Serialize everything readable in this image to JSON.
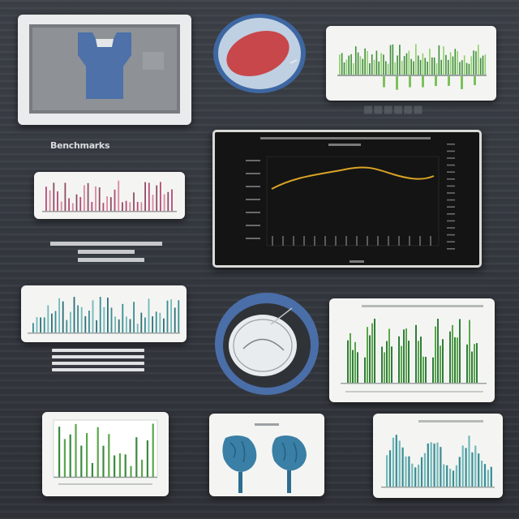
{
  "blurbs": {
    "title": "Benchmarks"
  },
  "colors": {
    "background": "#363a40",
    "accent_blue": "#5b7db0",
    "accent_red": "#c8474a",
    "accent_green": "#5aa64b",
    "accent_teal": "#3a8c95",
    "accent_yellow": "#d9a425",
    "accent_magenta": "#b54a79",
    "monitor_bg": "#141414"
  },
  "icons": {
    "pie": "red-oval-chart-icon",
    "globe": "sphere-icon",
    "brain": "brain-icon"
  }
}
